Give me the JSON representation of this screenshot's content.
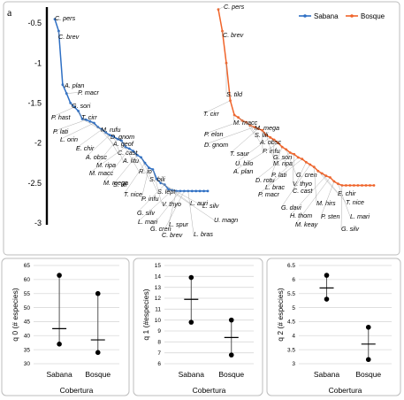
{
  "colors": {
    "sabana": "#2e6fc4",
    "bosque": "#f0642a",
    "leader": "#9a9a9a",
    "grid": "#d9d9d9",
    "ebar": "#555555"
  },
  "panel_a": {
    "letter": "a",
    "legend": [
      "Sabana",
      "Bosque"
    ],
    "yticks": [
      "-0.5",
      "-1",
      "-1.5",
      "-2",
      "-2.5",
      "-3"
    ]
  },
  "panel_b": {
    "letter": "b"
  },
  "chart_data": [
    {
      "type": "line",
      "panel": "a",
      "ylim": [
        -3,
        -0.3
      ],
      "yticks": [
        -0.5,
        -1,
        -1.5,
        -2,
        -2.5,
        -3
      ],
      "legend_position": "top-right",
      "series": [
        {
          "name": "Sabana",
          "values": [
            -0.45,
            -0.6,
            -1.27,
            -1.38,
            -1.5,
            -1.55,
            -1.6,
            -1.7,
            -1.71,
            -1.73,
            -1.75,
            -1.8,
            -1.83,
            -1.87,
            -1.9,
            -1.92,
            -1.95,
            -1.97,
            -2.05,
            -2.07,
            -2.1,
            -2.15,
            -2.18,
            -2.25,
            -2.31,
            -2.33,
            -2.45,
            -2.5,
            -2.52,
            -2.58,
            -2.59,
            -2.6,
            -2.6,
            -2.6,
            -2.6,
            -2.6,
            -2.6,
            -2.6,
            -2.6,
            -2.6
          ]
        },
        {
          "name": "Bosque",
          "values": [
            -0.33,
            -0.6,
            -1.0,
            -1.47,
            -1.65,
            -1.68,
            -1.72,
            -1.74,
            -1.78,
            -1.8,
            -1.82,
            -1.84,
            -1.9,
            -1.93,
            -1.96,
            -2.0,
            -2.05,
            -2.08,
            -2.12,
            -2.14,
            -2.18,
            -2.2,
            -2.24,
            -2.27,
            -2.3,
            -2.35,
            -2.38,
            -2.41,
            -2.43,
            -2.48,
            -2.51,
            -2.53,
            -2.53,
            -2.53,
            -2.53,
            -2.53,
            -2.53,
            -2.53,
            -2.53,
            -2.53
          ]
        }
      ],
      "labels_sabana": [
        "C. pers",
        "C. brev",
        "A. plan",
        "P. macr",
        "G. sori",
        "P. hast",
        "T. cirr",
        "M. rufu",
        "P. lati",
        "D. gnom",
        "L. orin",
        "A. geof",
        "E. chir",
        "C. cast",
        "A. obsc",
        "A. litu",
        "M. ripa",
        "R. io",
        "M. macc",
        "M. mega",
        "S. bili",
        "S. lili",
        "S. lept",
        "T. nice",
        "P. infu",
        "V. thyo",
        "L. auri",
        "L. silv",
        "G. silv",
        "U. magn",
        "L. mari",
        "L. spur",
        "G. cren",
        "C. brev",
        "L. bras"
      ],
      "labels_bosque": [
        "C. pers",
        "C. brev",
        "S. tild",
        "T. cirr",
        "M. macc",
        "M. mega",
        "P. elon",
        "S. lili",
        "A. obsc",
        "D. gnom",
        "T. saur",
        "P. infu",
        "G. sori",
        "U. bilo",
        "M. ripa",
        "A. plan",
        "P. lati",
        "G. cren",
        "D. rotu",
        "V. thyo",
        "L. brac",
        "P. macr",
        "C. cast",
        "G. davi",
        "M. hirs",
        "E. chir",
        "T. nice",
        "H. thom",
        "M. keay",
        "P. sten",
        "L. mari",
        "G. silv"
      ]
    },
    {
      "type": "scatter",
      "panel": "b1",
      "xlabel": "Cobertura",
      "ylabel": "q 0 (# especies)",
      "categories": [
        "Sabana",
        "Bosque"
      ],
      "ylim": [
        30,
        65
      ],
      "yticks": [
        30,
        35,
        40,
        45,
        50,
        55,
        60,
        65
      ],
      "mean": [
        42.5,
        38.5
      ],
      "upper": [
        61.5,
        55
      ],
      "lower": [
        37,
        34
      ]
    },
    {
      "type": "scatter",
      "panel": "b2",
      "xlabel": "Cobertura",
      "ylabel": "q 1 (#especies)",
      "categories": [
        "Sabana",
        "Bosque"
      ],
      "ylim": [
        6,
        15
      ],
      "yticks": [
        6,
        7,
        8,
        9,
        10,
        11,
        12,
        13,
        14,
        15
      ],
      "mean": [
        11.9,
        8.4
      ],
      "upper": [
        13.9,
        10
      ],
      "lower": [
        9.8,
        6.8
      ]
    },
    {
      "type": "scatter",
      "panel": "b3",
      "xlabel": "Cobertura",
      "ylabel": "q 2 (# especies)",
      "categories": [
        "Sabana",
        "Bosque"
      ],
      "ylim": [
        3,
        6.5
      ],
      "yticks": [
        3,
        3.5,
        4,
        4.5,
        5,
        5.5,
        6,
        6.5
      ],
      "mean": [
        5.7,
        3.7
      ],
      "upper": [
        6.15,
        4.3
      ],
      "lower": [
        5.3,
        3.15
      ]
    }
  ]
}
